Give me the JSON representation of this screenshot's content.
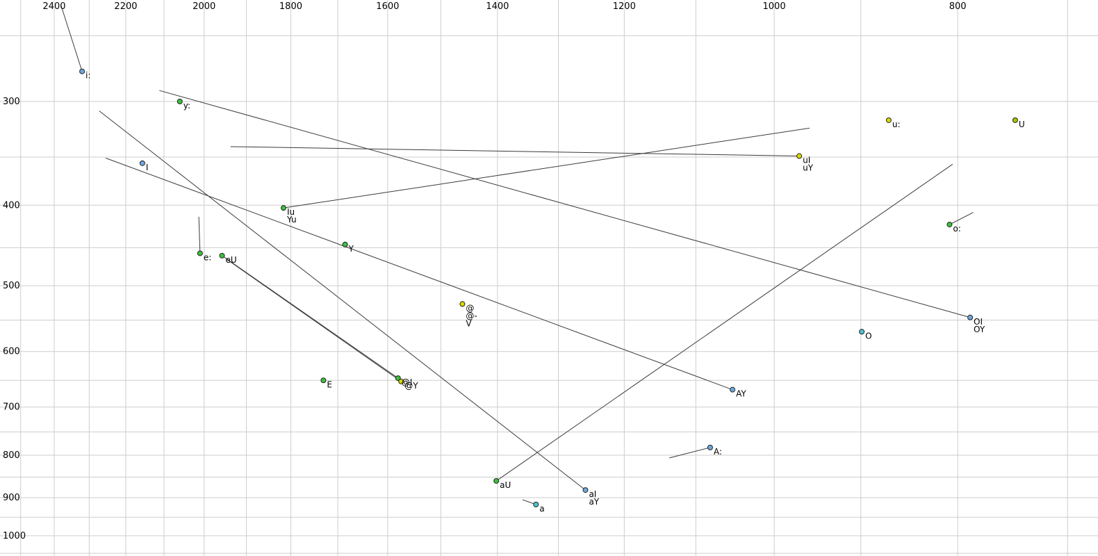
{
  "chart_data": {
    "type": "scatter",
    "title": "",
    "x_axis": {
      "position": "top",
      "scale": "log",
      "reversed": true,
      "ticks": [
        2400,
        2200,
        2000,
        1800,
        1600,
        1400,
        1200,
        1000,
        800
      ],
      "range": [
        2564,
        674
      ],
      "grid_step": 100
    },
    "y_axis": {
      "position": "left",
      "scale": "log",
      "increases_downward": true,
      "ticks": [
        300,
        400,
        500,
        600,
        700,
        800,
        900,
        1000
      ],
      "range": [
        226,
        1058
      ],
      "grid_step": 50
    },
    "grid": "on",
    "grid_color": "#cdcdcd",
    "trajectory_color": "#3a3a3a",
    "point_outline_color": "#222222",
    "palette": {
      "blue": "#6fa8dc",
      "cyan": "#4fc3d1",
      "green": "#3cc13c",
      "yellow": "#d9d900",
      "yellowgreen": "#9ecb00"
    },
    "points": [
      {
        "labels": [
          "i:"
        ],
        "f2": 2320,
        "f1": 276,
        "color": "blue",
        "traj": [
          {
            "f2": 2380,
            "f1": 230
          }
        ]
      },
      {
        "labels": [
          "y:"
        ],
        "f2": 2060,
        "f1": 300,
        "color": "green"
      },
      {
        "labels": [
          "I"
        ],
        "f2": 2156,
        "f1": 356,
        "color": "blue"
      },
      {
        "labels": [
          "u:"
        ],
        "f2": 870,
        "f1": 316,
        "color": "yellow"
      },
      {
        "labels": [
          "U"
        ],
        "f2": 746,
        "f1": 316,
        "color": "yellowgreen"
      },
      {
        "labels": [
          "uI",
          "uY"
        ],
        "f2": 970,
        "f1": 349,
        "color": "yellow",
        "traj": [
          {
            "f2": 1937,
            "f1": 340
          }
        ]
      },
      {
        "labels": [
          "Iu",
          "Yu"
        ],
        "f2": 1816,
        "f1": 403,
        "color": "green",
        "traj": [
          {
            "f2": 958,
            "f1": 323
          }
        ]
      },
      {
        "labels": [
          "o:"
        ],
        "f2": 808,
        "f1": 422,
        "color": "green",
        "traj": [
          {
            "f2": 785,
            "f1": 408
          }
        ]
      },
      {
        "labels": [
          "e:"
        ],
        "f2": 2010,
        "f1": 457,
        "color": "green",
        "traj": [
          {
            "f2": 2013,
            "f1": 413
          }
        ]
      },
      {
        "labels": [
          "eU"
        ],
        "f2": 1957,
        "f1": 460,
        "color": "green"
      },
      {
        "labels": [
          "Y"
        ],
        "f2": 1685,
        "f1": 446,
        "color": "green"
      },
      {
        "labels": [
          "@",
          "@-",
          "V"
        ],
        "f2": 1461,
        "f1": 526,
        "color": "yellow"
      },
      {
        "labels": [
          "OI",
          "OY"
        ],
        "f2": 788,
        "f1": 546,
        "color": "blue",
        "traj": [
          {
            "f2": 2112,
            "f1": 291
          }
        ]
      },
      {
        "labels": [
          "O"
        ],
        "f2": 899,
        "f1": 568,
        "color": "cyan"
      },
      {
        "labels": [
          "E"
        ],
        "f2": 1730,
        "f1": 650,
        "color": "green"
      },
      {
        "labels": [
          "@I"
        ],
        "f2": 1580,
        "f1": 646,
        "color": "green",
        "traj": [
          {
            "f2": 1957,
            "f1": 460
          }
        ]
      },
      {
        "labels": [
          "@Y"
        ],
        "f2": 1574,
        "f1": 652,
        "color": "yellow",
        "traj": [
          {
            "f2": 1945,
            "f1": 465
          }
        ]
      },
      {
        "labels": [
          "AY"
        ],
        "f2": 1052,
        "f1": 667,
        "color": "blue",
        "traj": [
          {
            "f2": 2254,
            "f1": 351
          }
        ]
      },
      {
        "labels": [
          "A:"
        ],
        "f2": 1081,
        "f1": 783,
        "color": "blue",
        "traj": [
          {
            "f2": 1136,
            "f1": 806
          }
        ]
      },
      {
        "labels": [
          "aU"
        ],
        "f2": 1402,
        "f1": 859,
        "color": "green",
        "traj": [
          {
            "f2": 805,
            "f1": 357
          }
        ]
      },
      {
        "labels": [
          "aI",
          "aY"
        ],
        "f2": 1258,
        "f1": 881,
        "color": "blue",
        "traj": [
          {
            "f2": 2272,
            "f1": 308
          }
        ]
      },
      {
        "labels": [
          "a"
        ],
        "f2": 1336,
        "f1": 917,
        "color": "cyan",
        "traj": [
          {
            "f2": 1358,
            "f1": 905
          }
        ]
      }
    ]
  }
}
